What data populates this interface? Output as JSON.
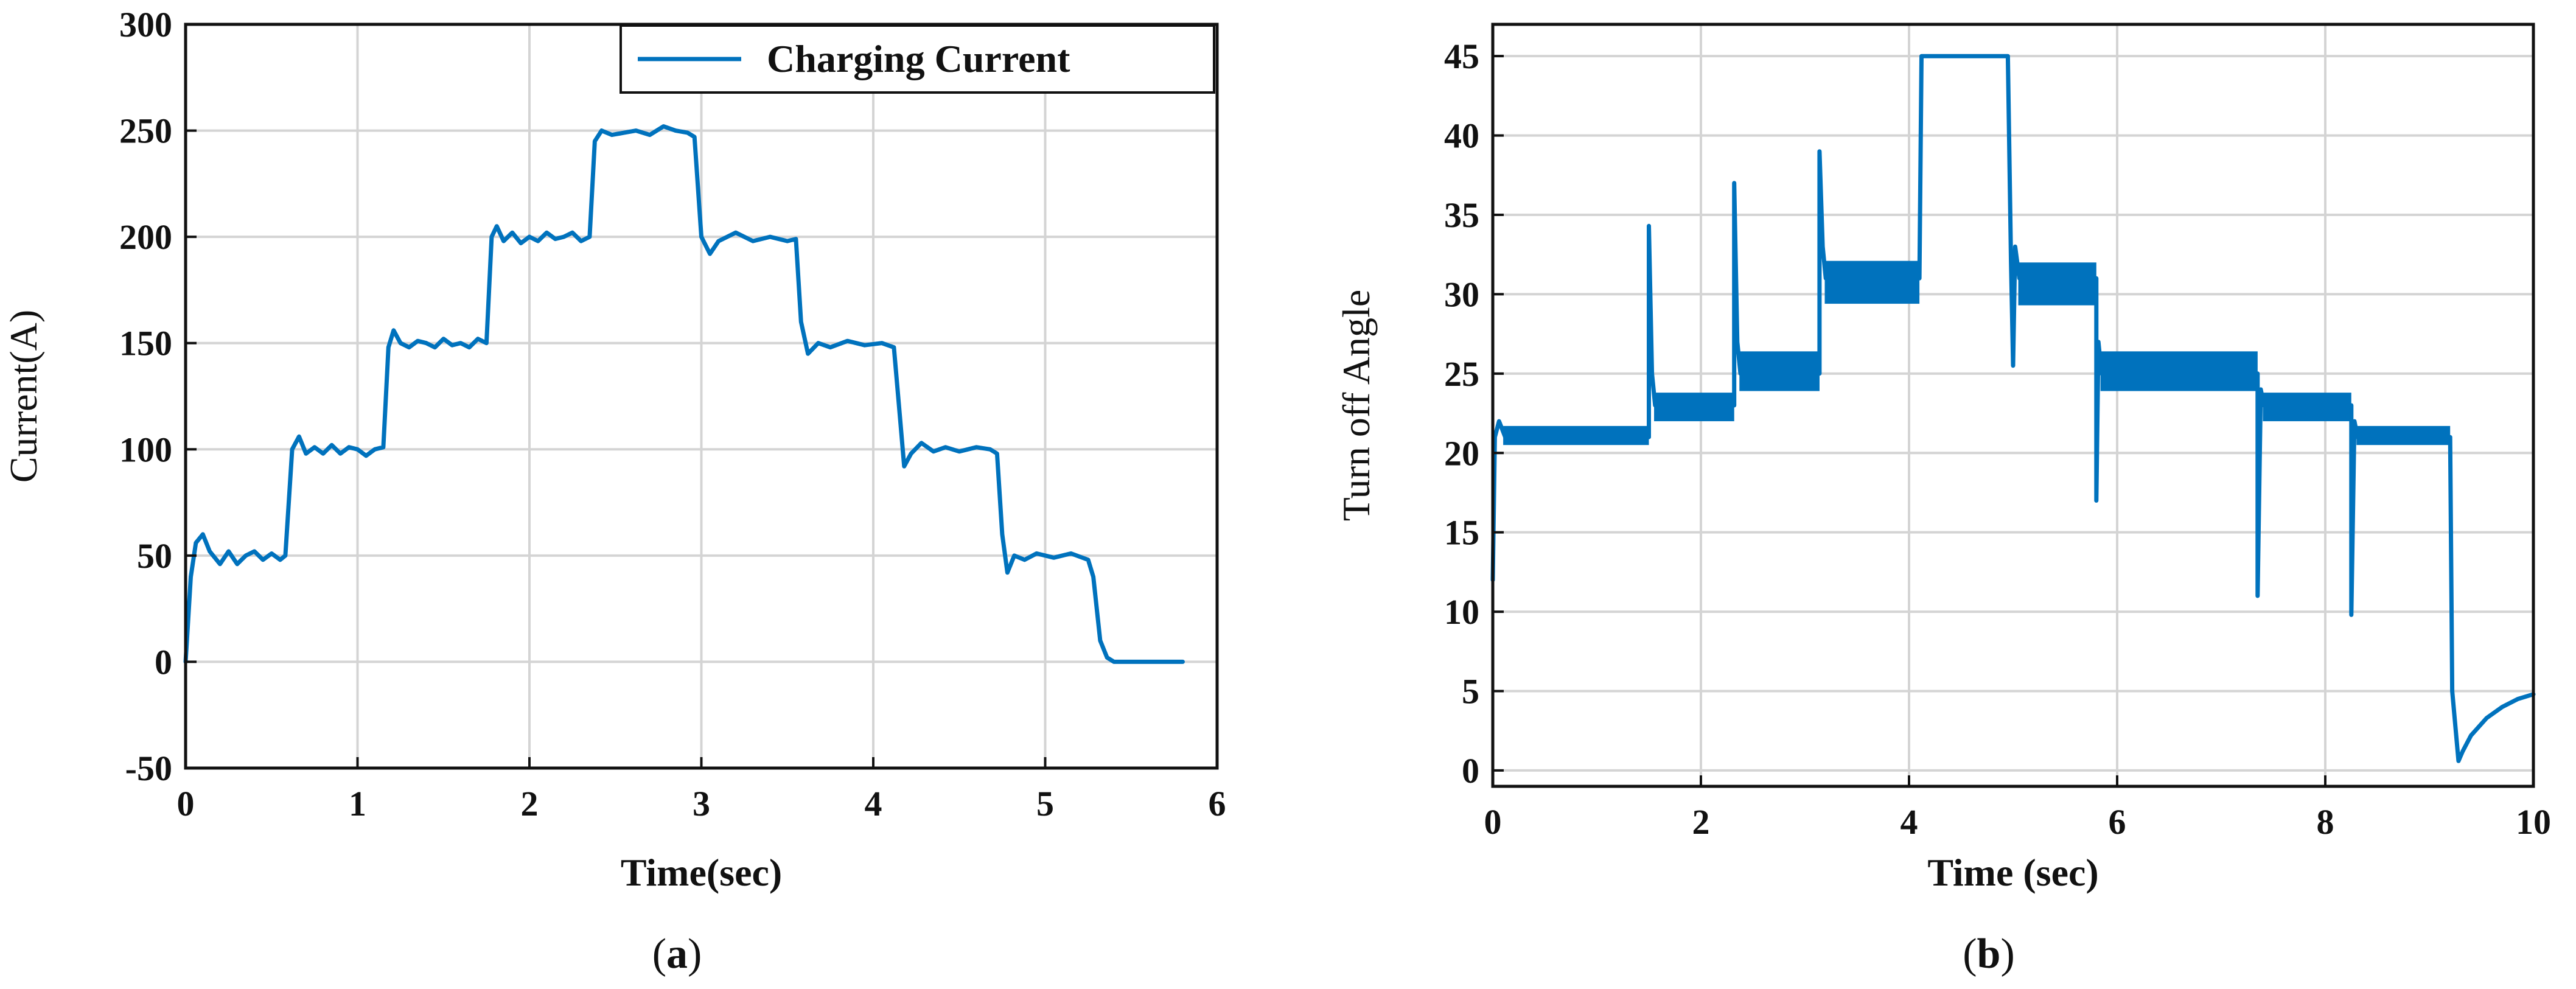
{
  "colors": {
    "series": "#0072BD",
    "axis": "#111111",
    "grid": "#d4d4d4"
  },
  "chart_data": [
    {
      "type": "line",
      "title": "",
      "xlabel": "Time(sec)",
      "ylabel": "Current(A)",
      "xlim": [
        0,
        6
      ],
      "ylim": [
        -50,
        300
      ],
      "xticks": [
        "0",
        "1",
        "2",
        "3",
        "4",
        "5",
        "6"
      ],
      "yticks": [
        "-50",
        "0",
        "50",
        "100",
        "150",
        "200",
        "250",
        "300"
      ],
      "grid": true,
      "legend_position": "top-right",
      "caption": {
        "open": "(",
        "letter": "a",
        "close": ")"
      },
      "series": [
        {
          "name": "Charging Current",
          "x": [
            0,
            0.03,
            0.06,
            0.1,
            0.14,
            0.2,
            0.25,
            0.3,
            0.35,
            0.4,
            0.45,
            0.5,
            0.55,
            0.58,
            0.62,
            0.66,
            0.7,
            0.75,
            0.8,
            0.85,
            0.9,
            0.95,
            1.0,
            1.05,
            1.1,
            1.15,
            1.18,
            1.21,
            1.25,
            1.3,
            1.35,
            1.4,
            1.45,
            1.5,
            1.55,
            1.6,
            1.65,
            1.7,
            1.75,
            1.78,
            1.81,
            1.85,
            1.9,
            1.95,
            2.0,
            2.05,
            2.1,
            2.15,
            2.2,
            2.25,
            2.3,
            2.35,
            2.38,
            2.42,
            2.48,
            2.55,
            2.62,
            2.7,
            2.78,
            2.85,
            2.92,
            2.96,
            3.0,
            3.05,
            3.1,
            3.2,
            3.3,
            3.4,
            3.5,
            3.55,
            3.58,
            3.62,
            3.68,
            3.75,
            3.85,
            3.95,
            4.05,
            4.12,
            4.15,
            4.18,
            4.22,
            4.28,
            4.35,
            4.42,
            4.5,
            4.6,
            4.68,
            4.72,
            4.75,
            4.78,
            4.82,
            4.88,
            4.95,
            5.05,
            5.15,
            5.25,
            5.28,
            5.32,
            5.36,
            5.4,
            5.45,
            5.5,
            5.6,
            5.7,
            5.8
          ],
          "y": [
            0,
            40,
            56,
            60,
            52,
            46,
            52,
            46,
            50,
            52,
            48,
            51,
            48,
            50,
            100,
            106,
            98,
            101,
            98,
            102,
            98,
            101,
            100,
            97,
            100,
            101,
            148,
            156,
            150,
            148,
            151,
            150,
            148,
            152,
            149,
            150,
            148,
            152,
            150,
            200,
            205,
            198,
            202,
            197,
            200,
            198,
            202,
            199,
            200,
            202,
            198,
            200,
            245,
            250,
            248,
            249,
            250,
            248,
            252,
            250,
            249,
            247,
            200,
            192,
            198,
            202,
            198,
            200,
            198,
            199,
            160,
            145,
            150,
            148,
            151,
            149,
            150,
            148,
            120,
            92,
            98,
            103,
            99,
            101,
            99,
            101,
            100,
            98,
            60,
            42,
            50,
            48,
            51,
            49,
            51,
            48,
            40,
            10,
            2,
            0,
            0,
            0,
            0,
            0,
            0
          ]
        }
      ]
    },
    {
      "type": "line",
      "title": "",
      "xlabel": "Time (sec)",
      "ylabel": "Turn off Angle",
      "xlim": [
        0,
        10
      ],
      "ylim": [
        -1,
        47
      ],
      "xticks": [
        "0",
        "2",
        "4",
        "6",
        "8",
        "10"
      ],
      "yticks": [
        "0",
        "5",
        "10",
        "15",
        "20",
        "25",
        "30",
        "35",
        "40",
        "45"
      ],
      "grid": true,
      "caption": {
        "open": "(",
        "letter": "b",
        "close": ")"
      },
      "series": [
        {
          "x": [
            0,
            0.02,
            0.06,
            0.12,
            1.5,
            1.5,
            1.53,
            1.56,
            2.32,
            2.32,
            2.35,
            2.38,
            3.14,
            3.14,
            3.17,
            3.2,
            4.1,
            4.12,
            4.95,
            4.98,
            5.0,
            5.02,
            5.06,
            5.8,
            5.8,
            5.82,
            5.85,
            7.35,
            7.35,
            7.38,
            7.41,
            8.25,
            8.25,
            8.28,
            8.31,
            9.2,
            9.22,
            9.28,
            9.32,
            9.4,
            9.55,
            9.7,
            9.85,
            10.0
          ],
          "y": [
            12,
            21,
            22,
            21,
            21,
            34.3,
            25,
            23,
            23,
            37,
            27,
            25,
            25,
            39,
            33,
            31,
            31,
            45,
            45,
            32,
            25.5,
            33,
            31,
            31,
            17,
            27,
            25,
            25,
            11,
            24,
            23,
            23,
            9.8,
            22,
            21,
            21,
            5,
            0.6,
            1.2,
            2.2,
            3.3,
            4.0,
            4.5,
            4.8
          ],
          "band_ranges": [
            {
              "x0": 0.1,
              "x1": 1.5,
              "y0": 20.5,
              "y1": 21.7
            },
            {
              "x0": 1.55,
              "x1": 2.32,
              "y0": 22.0,
              "y1": 23.8
            },
            {
              "x0": 2.37,
              "x1": 3.14,
              "y0": 23.9,
              "y1": 26.4
            },
            {
              "x0": 3.19,
              "x1": 4.1,
              "y0": 29.4,
              "y1": 32.1
            },
            {
              "x0": 5.05,
              "x1": 5.8,
              "y0": 29.3,
              "y1": 32.0
            },
            {
              "x0": 5.84,
              "x1": 7.35,
              "y0": 23.9,
              "y1": 26.4
            },
            {
              "x0": 7.4,
              "x1": 8.25,
              "y0": 22.0,
              "y1": 23.8
            },
            {
              "x0": 8.3,
              "x1": 9.2,
              "y0": 20.5,
              "y1": 21.7
            }
          ]
        }
      ]
    }
  ]
}
